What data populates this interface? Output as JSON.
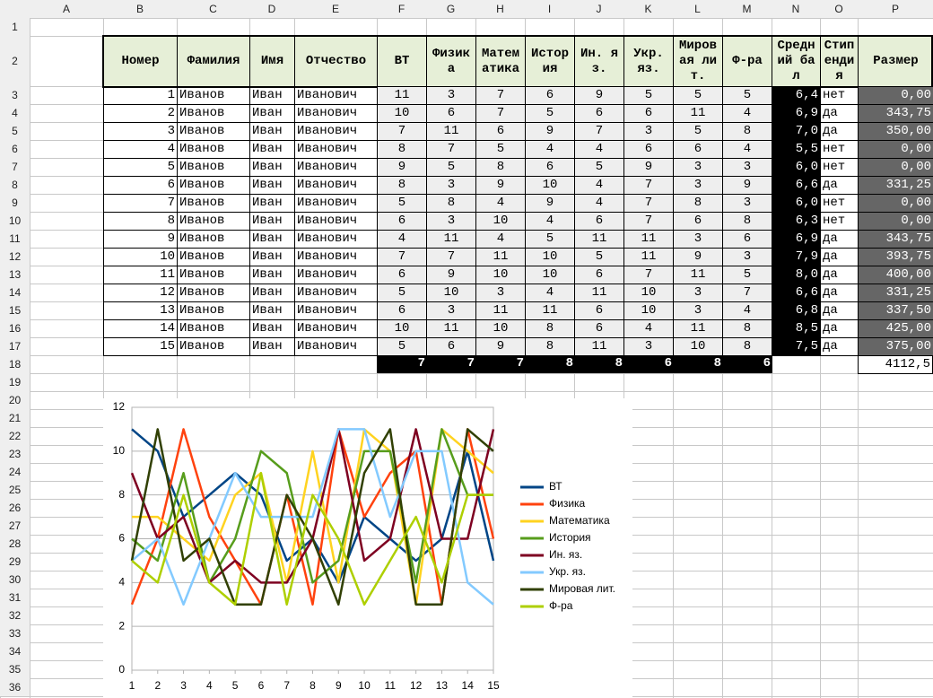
{
  "columns": [
    "A",
    "B",
    "C",
    "D",
    "E",
    "F",
    "G",
    "H",
    "I",
    "J",
    "K",
    "L",
    "M",
    "N",
    "O",
    "P"
  ],
  "row_numbers": [
    1,
    2,
    3,
    4,
    5,
    6,
    7,
    8,
    9,
    10,
    11,
    12,
    13,
    14,
    15,
    16,
    17,
    18,
    19,
    20,
    21,
    22,
    23,
    24,
    25,
    26,
    27,
    28,
    29,
    30,
    31,
    32,
    33,
    34,
    35,
    36
  ],
  "table": {
    "header": [
      "Номер",
      "Фамилия",
      "Имя",
      "Отчество",
      "ВТ",
      "Физика",
      "Математика",
      "История",
      "Ин. яз.",
      "Укр. яз.",
      "Мировая лит.",
      "Ф-ра",
      "Средний бал",
      "Стипендия",
      "Размер"
    ],
    "rows": [
      [
        "1",
        "Иванов",
        "Иван",
        "Иванович",
        "11",
        "3",
        "7",
        "6",
        "9",
        "5",
        "5",
        "5",
        "6,4",
        "нет",
        "0,00"
      ],
      [
        "2",
        "Иванов",
        "Иван",
        "Иванович",
        "10",
        "6",
        "7",
        "5",
        "6",
        "6",
        "11",
        "4",
        "6,9",
        "да",
        "343,75"
      ],
      [
        "3",
        "Иванов",
        "Иван",
        "Иванович",
        "7",
        "11",
        "6",
        "9",
        "7",
        "3",
        "5",
        "8",
        "7,0",
        "да",
        "350,00"
      ],
      [
        "4",
        "Иванов",
        "Иван",
        "Иванович",
        "8",
        "7",
        "5",
        "4",
        "4",
        "6",
        "6",
        "4",
        "5,5",
        "нет",
        "0,00"
      ],
      [
        "5",
        "Иванов",
        "Иван",
        "Иванович",
        "9",
        "5",
        "8",
        "6",
        "5",
        "9",
        "3",
        "3",
        "6,0",
        "нет",
        "0,00"
      ],
      [
        "6",
        "Иванов",
        "Иван",
        "Иванович",
        "8",
        "3",
        "9",
        "10",
        "4",
        "7",
        "3",
        "9",
        "6,6",
        "да",
        "331,25"
      ],
      [
        "7",
        "Иванов",
        "Иван",
        "Иванович",
        "5",
        "8",
        "4",
        "9",
        "4",
        "7",
        "8",
        "3",
        "6,0",
        "нет",
        "0,00"
      ],
      [
        "8",
        "Иванов",
        "Иван",
        "Иванович",
        "6",
        "3",
        "10",
        "4",
        "6",
        "7",
        "6",
        "8",
        "6,3",
        "нет",
        "0,00"
      ],
      [
        "9",
        "Иванов",
        "Иван",
        "Иванович",
        "4",
        "11",
        "4",
        "5",
        "11",
        "11",
        "3",
        "6",
        "6,9",
        "да",
        "343,75"
      ],
      [
        "10",
        "Иванов",
        "Иван",
        "Иванович",
        "7",
        "7",
        "11",
        "10",
        "5",
        "11",
        "9",
        "3",
        "7,9",
        "да",
        "393,75"
      ],
      [
        "11",
        "Иванов",
        "Иван",
        "Иванович",
        "6",
        "9",
        "10",
        "10",
        "6",
        "7",
        "11",
        "5",
        "8,0",
        "да",
        "400,00"
      ],
      [
        "12",
        "Иванов",
        "Иван",
        "Иванович",
        "5",
        "10",
        "3",
        "4",
        "11",
        "10",
        "3",
        "7",
        "6,6",
        "да",
        "331,25"
      ],
      [
        "13",
        "Иванов",
        "Иван",
        "Иванович",
        "6",
        "3",
        "11",
        "11",
        "6",
        "10",
        "3",
        "4",
        "6,8",
        "да",
        "337,50"
      ],
      [
        "14",
        "Иванов",
        "Иван",
        "Иванович",
        "10",
        "11",
        "10",
        "8",
        "6",
        "4",
        "11",
        "8",
        "8,5",
        "да",
        "425,00"
      ],
      [
        "15",
        "Иванов",
        "Иван",
        "Иванович",
        "5",
        "6",
        "9",
        "8",
        "11",
        "3",
        "10",
        "8",
        "7,5",
        "да",
        "375,00"
      ]
    ],
    "totals": [
      "7",
      "7",
      "7",
      "8",
      "8",
      "6",
      "8",
      "6"
    ],
    "total_size": "4112,5"
  },
  "chart_data": {
    "type": "line",
    "x": [
      1,
      2,
      3,
      4,
      5,
      6,
      7,
      8,
      9,
      10,
      11,
      12,
      13,
      14,
      15
    ],
    "xlim": [
      1,
      15
    ],
    "xticks": [
      1,
      2,
      3,
      4,
      5,
      6,
      7,
      8,
      9,
      10,
      11,
      12,
      13,
      14,
      15
    ],
    "ylim": [
      0,
      12
    ],
    "yticks": [
      0,
      2,
      4,
      6,
      8,
      10,
      12
    ],
    "grid": true,
    "series": [
      {
        "name": "ВТ",
        "color": "#004586",
        "values": [
          11,
          10,
          7,
          8,
          9,
          8,
          5,
          6,
          4,
          7,
          6,
          5,
          6,
          10,
          5
        ]
      },
      {
        "name": "Физика",
        "color": "#ff420e",
        "values": [
          3,
          6,
          11,
          7,
          5,
          3,
          8,
          3,
          11,
          7,
          9,
          10,
          3,
          11,
          6
        ]
      },
      {
        "name": "Математика",
        "color": "#ffd320",
        "values": [
          7,
          7,
          6,
          5,
          8,
          9,
          4,
          10,
          4,
          11,
          10,
          3,
          11,
          10,
          9
        ]
      },
      {
        "name": "История",
        "color": "#579d1c",
        "values": [
          6,
          5,
          9,
          4,
          6,
          10,
          9,
          4,
          5,
          10,
          10,
          4,
          11,
          8,
          8
        ]
      },
      {
        "name": "Ин. яз.",
        "color": "#7e0021",
        "values": [
          9,
          6,
          7,
          4,
          5,
          4,
          4,
          6,
          11,
          5,
          6,
          11,
          6,
          6,
          11
        ]
      },
      {
        "name": "Укр. яз.",
        "color": "#83caff",
        "values": [
          5,
          6,
          3,
          6,
          9,
          7,
          7,
          7,
          11,
          11,
          7,
          10,
          10,
          4,
          3
        ]
      },
      {
        "name": "Мировая лит.",
        "color": "#314004",
        "values": [
          5,
          11,
          5,
          6,
          3,
          3,
          8,
          6,
          3,
          9,
          11,
          3,
          3,
          11,
          10
        ]
      },
      {
        "name": "Ф-ра",
        "color": "#aecf00",
        "values": [
          5,
          4,
          8,
          4,
          3,
          9,
          3,
          8,
          6,
          3,
          5,
          7,
          4,
          8,
          8
        ]
      }
    ]
  }
}
